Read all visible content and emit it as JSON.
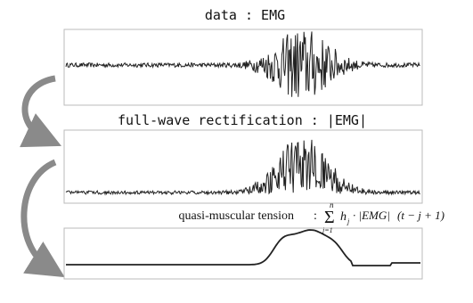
{
  "diagram": {
    "panels": [
      {
        "title": "data : EMG"
      },
      {
        "title": "full-wave rectification : |EMG|"
      },
      {
        "title": "quasi-muscular tension"
      }
    ],
    "formula": {
      "colon": ":",
      "upper": "n",
      "lower": "j=1",
      "coef": "h",
      "coef_sub": "j",
      "body": "· |EMG|",
      "arg": "(t − j + 1)"
    }
  }
}
